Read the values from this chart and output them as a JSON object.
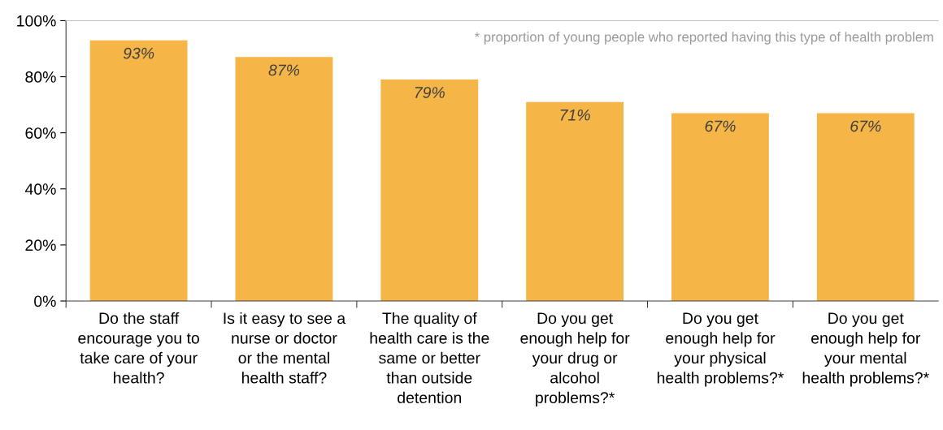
{
  "chart_data": {
    "type": "bar",
    "categories": [
      "Do the staff\nencourage you to\ntake care of your\nhealth?",
      "Is it easy to see a\nnurse or doctor\nor the mental\nhealth staff?",
      "The quality of\nhealth care is the\nsame or better\nthan outside\ndetention",
      "Do you get\nenough help for\nyour drug or\nalcohol\nproblems?*",
      "Do you get\nenough help for\nyour physical\nhealth problems?*",
      "Do you get\nenough help for\nyour mental\nhealth problems?*"
    ],
    "values": [
      93,
      87,
      79,
      71,
      67,
      67
    ],
    "value_labels": [
      "93%",
      "87%",
      "79%",
      "71%",
      "67%",
      "67%"
    ],
    "color": "#f5b547",
    "ylim": [
      0,
      100
    ],
    "yticks": [
      {
        "value": 0,
        "label": "0%"
      },
      {
        "value": 20,
        "label": "20%"
      },
      {
        "value": 40,
        "label": "40%"
      },
      {
        "value": 60,
        "label": "60%"
      },
      {
        "value": 80,
        "label": "80%"
      },
      {
        "value": 100,
        "label": "100%"
      }
    ],
    "annotations": [
      "* proportion of young people who reported having this type of health problem"
    ]
  }
}
